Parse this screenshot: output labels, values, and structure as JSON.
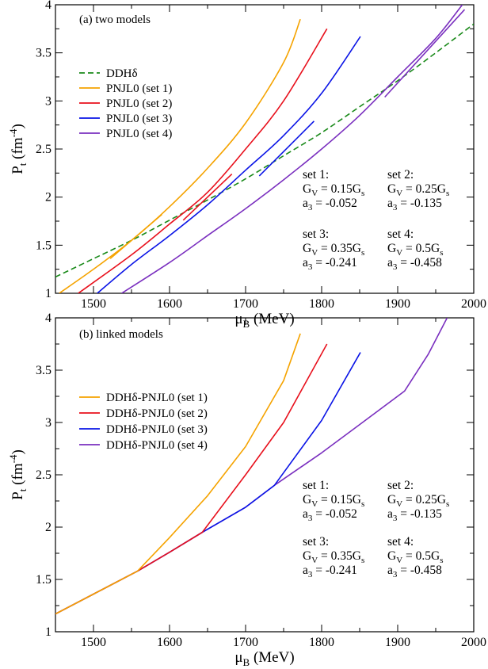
{
  "chart_data": [
    {
      "type": "line",
      "panel_label": "(a) two models",
      "xlabel": "μ",
      "xlabel_sub": "B",
      "xlabel_unit": " (MeV)",
      "ylabel": "P",
      "ylabel_sub": "t",
      "ylabel_unit_pre": " (fm",
      "ylabel_unit_sup": "-4",
      "ylabel_unit_post": ")",
      "xlim": [
        1450,
        2000
      ],
      "ylim": [
        1,
        4
      ],
      "xticks": [
        1500,
        1600,
        1700,
        1800,
        1900,
        2000
      ],
      "yticks": [
        1,
        1.5,
        2,
        2.5,
        3,
        3.5,
        4
      ],
      "xtick_labels": [
        "1500",
        "1600",
        "1700",
        "1800",
        "1900",
        "2000"
      ],
      "ytick_labels": [
        "1",
        "1.5",
        "2",
        "2.5",
        "3",
        "3.5",
        "4"
      ],
      "legend_position": "upper-left",
      "series": [
        {
          "name": "DDHδ",
          "color": "#1a8a1a",
          "dash": true,
          "x": [
            1450,
            1500,
            1550,
            1600,
            1650,
            1700,
            1750,
            1800,
            1850,
            1900,
            1950,
            2000
          ],
          "y": [
            1.17,
            1.36,
            1.55,
            1.76,
            1.97,
            2.19,
            2.43,
            2.67,
            2.94,
            3.21,
            3.5,
            3.8
          ]
        },
        {
          "name": "PNJL0 (set 1)",
          "color": "#f5a300",
          "x": [
            1455,
            1500,
            1550,
            1600,
            1650,
            1700,
            1750,
            1772
          ],
          "y": [
            1.0,
            1.25,
            1.55,
            1.9,
            2.3,
            2.77,
            3.4,
            3.85
          ]
        },
        {
          "name": "PNJL0 (set 2)",
          "color": "#e8101c",
          "x": [
            1480,
            1550,
            1600,
            1650,
            1700,
            1750,
            1807
          ],
          "y": [
            1.0,
            1.4,
            1.72,
            2.05,
            2.5,
            3.0,
            3.75
          ]
        },
        {
          "name": "PNJL0 (set 3)",
          "color": "#0a14e6",
          "x": [
            1505,
            1550,
            1600,
            1650,
            1700,
            1750,
            1800,
            1851
          ],
          "y": [
            1.0,
            1.3,
            1.6,
            1.92,
            2.28,
            2.64,
            3.08,
            3.67
          ]
        },
        {
          "name": "PNJL0 (set 4)",
          "color": "#7a2fbf",
          "x": [
            1537,
            1600,
            1650,
            1700,
            1750,
            1800,
            1850,
            1900,
            1950,
            1985
          ],
          "y": [
            1.0,
            1.32,
            1.6,
            1.88,
            2.18,
            2.5,
            2.85,
            3.25,
            3.65,
            4.0
          ]
        }
      ],
      "branches": [
        {
          "color": "#f5a300",
          "x": [
            1522,
            1590
          ],
          "y": [
            1.36,
            1.82
          ]
        },
        {
          "color": "#e8101c",
          "x": [
            1618,
            1682
          ],
          "y": [
            1.76,
            2.24
          ]
        },
        {
          "color": "#0a14e6",
          "x": [
            1718,
            1790
          ],
          "y": [
            2.22,
            2.79
          ]
        },
        {
          "color": "#7a2fbf",
          "x": [
            1883,
            1988
          ],
          "y": [
            3.04,
            3.95
          ]
        }
      ],
      "params": [
        {
          "label": "set 1:",
          "gv": "0.15G",
          "a3": "-0.052"
        },
        {
          "label": "set 2:",
          "gv": "0.25G",
          "a3": "-0.135"
        },
        {
          "label": "set 3:",
          "gv": "0.35G",
          "a3": "-0.241"
        },
        {
          "label": "set 4:",
          "gv": "0.5G",
          "a3": "-0.458"
        }
      ]
    },
    {
      "type": "line",
      "panel_label": "(b) linked models",
      "xlabel": "μ",
      "xlabel_sub": "B",
      "xlabel_unit": " (MeV)",
      "ylabel": "P",
      "ylabel_sub": "t",
      "ylabel_unit_pre": " (fm",
      "ylabel_unit_sup": "-4",
      "ylabel_unit_post": ")",
      "xlim": [
        1450,
        2000
      ],
      "ylim": [
        1,
        4
      ],
      "xticks": [
        1500,
        1600,
        1700,
        1800,
        1900,
        2000
      ],
      "yticks": [
        1,
        1.5,
        2,
        2.5,
        3,
        3.5,
        4
      ],
      "xtick_labels": [
        "1500",
        "1600",
        "1700",
        "1800",
        "1900",
        "2000"
      ],
      "ytick_labels": [
        "1",
        "1.5",
        "2",
        "2.5",
        "3",
        "3.5",
        "4"
      ],
      "legend_position": "upper-left",
      "series": [
        {
          "name": "DDHδ-PNJL0 (set 1)",
          "color": "#f5a300",
          "x": [
            1450,
            1500,
            1558,
            1600,
            1650,
            1700,
            1750,
            1772
          ],
          "y": [
            1.17,
            1.36,
            1.58,
            1.9,
            2.3,
            2.77,
            3.4,
            3.85
          ]
        },
        {
          "name": "DDHδ-PNJL0 (set 2)",
          "color": "#e8101c",
          "x": [
            1450,
            1500,
            1558,
            1600,
            1643,
            1700,
            1750,
            1807
          ],
          "y": [
            1.17,
            1.36,
            1.58,
            1.76,
            1.95,
            2.5,
            3.0,
            3.75
          ]
        },
        {
          "name": "DDHδ-PNJL0 (set 3)",
          "color": "#0a14e6",
          "x": [
            1450,
            1500,
            1558,
            1600,
            1643,
            1700,
            1738,
            1800,
            1851
          ],
          "y": [
            1.17,
            1.36,
            1.58,
            1.76,
            1.95,
            2.19,
            2.4,
            3.02,
            3.67
          ]
        },
        {
          "name": "DDHδ-PNJL0 (set 4)",
          "color": "#7a2fbf",
          "x": [
            1450,
            1500,
            1558,
            1600,
            1643,
            1700,
            1738,
            1800,
            1850,
            1909,
            1940,
            1965
          ],
          "y": [
            1.17,
            1.36,
            1.58,
            1.76,
            1.95,
            2.19,
            2.4,
            2.71,
            2.98,
            3.3,
            3.65,
            4.0
          ]
        }
      ],
      "branches": [],
      "params": [
        {
          "label": "set 1:",
          "gv": "0.15G",
          "a3": "-0.052"
        },
        {
          "label": "set 2:",
          "gv": "0.25G",
          "a3": "-0.135"
        },
        {
          "label": "set 3:",
          "gv": "0.35G",
          "a3": "-0.241"
        },
        {
          "label": "set 4:",
          "gv": "0.5G",
          "a3": "-0.458"
        }
      ]
    }
  ]
}
